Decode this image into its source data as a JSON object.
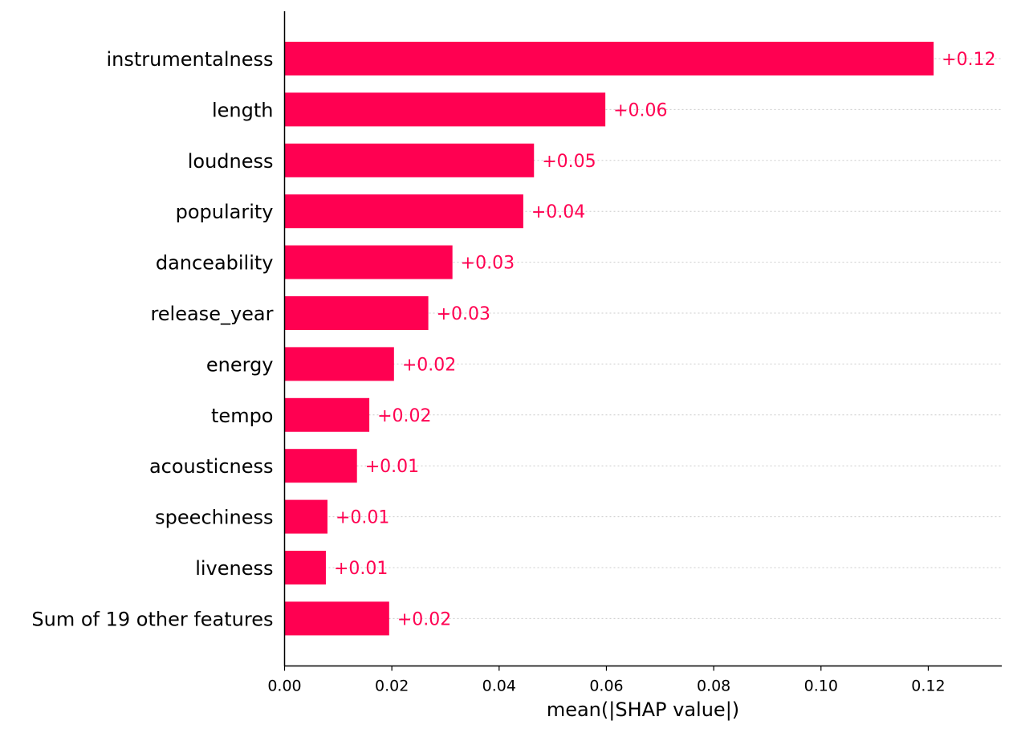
{
  "chart_data": {
    "type": "bar",
    "orientation": "horizontal",
    "categories": [
      "instrumentalness",
      "length",
      "loudness",
      "popularity",
      "danceability",
      "release_year",
      "energy",
      "tempo",
      "acousticness",
      "speechiness",
      "liveness",
      "Sum of 19 other features"
    ],
    "values": [
      0.121,
      0.0598,
      0.0465,
      0.0445,
      0.0313,
      0.0268,
      0.0204,
      0.0158,
      0.0135,
      0.008,
      0.0077,
      0.0195
    ],
    "value_labels": [
      "+0.12",
      "+0.06",
      "+0.05",
      "+0.04",
      "+0.03",
      "+0.03",
      "+0.02",
      "+0.02",
      "+0.01",
      "+0.01",
      "+0.01",
      "+0.02"
    ],
    "title": "",
    "xlabel": "mean(|SHAP value|)",
    "ylabel": "",
    "xlim": [
      0,
      0.1337
    ],
    "xticks": [
      0.0,
      0.02,
      0.04,
      0.06,
      0.08,
      0.1,
      0.12
    ],
    "xtick_labels": [
      "0.00",
      "0.02",
      "0.04",
      "0.06",
      "0.08",
      "0.10",
      "0.12"
    ],
    "grid": "horizontal dotted guides per row",
    "colors": {
      "bar": "#ff0051",
      "value_label": "#ff0051",
      "axis": "#000000",
      "guide": "#cccccc"
    }
  }
}
